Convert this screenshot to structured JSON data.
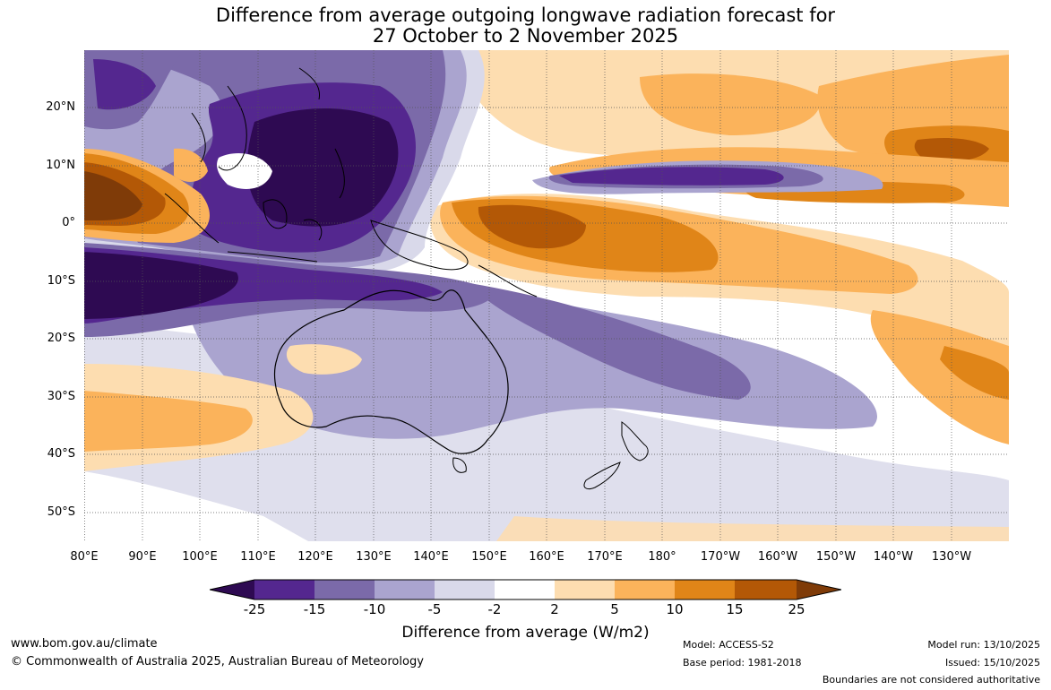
{
  "title": {
    "line1": "Difference from average outgoing longwave radiation forecast for",
    "line2": "27 October to 2 November 2025"
  },
  "map": {
    "name": "Outgoing longwave radiation anomaly forecast, Indo-Pacific region",
    "lat_labels": [
      "20°N",
      "10°N",
      "0°",
      "10°S",
      "20°S",
      "30°S",
      "40°S",
      "50°S"
    ],
    "lon_labels": [
      "80°E",
      "90°E",
      "100°E",
      "110°E",
      "120°E",
      "130°E",
      "140°E",
      "150°E",
      "160°E",
      "170°E",
      "180°",
      "170°W",
      "160°W",
      "150°W",
      "140°W",
      "130°W"
    ]
  },
  "legend": {
    "ticks": [
      "-25",
      "-15",
      "-10",
      "-5",
      "-2",
      "2",
      "5",
      "10",
      "15",
      "25"
    ],
    "colors": [
      "#2e0a52",
      "#54278f",
      "#7b6aa9",
      "#aaa4cf",
      "#d9d9ea",
      "#ffffff",
      "#fdddb0",
      "#fbb35b",
      "#e08518",
      "#b35806",
      "#7f3b08"
    ],
    "title": "Difference from average (W/m2)"
  },
  "footer": {
    "website": "www.bom.gov.au/climate",
    "copyright": "© Commonwealth of Australia 2025, Australian Bureau of Meteorology",
    "model": "Model: ACCESS-S2",
    "base_period": "Base period: 1981-2018",
    "model_run": "Model run: 13/10/2025",
    "issued": "Issued: 15/10/2025",
    "disclaimer": "Boundaries are not considered authoritative"
  }
}
